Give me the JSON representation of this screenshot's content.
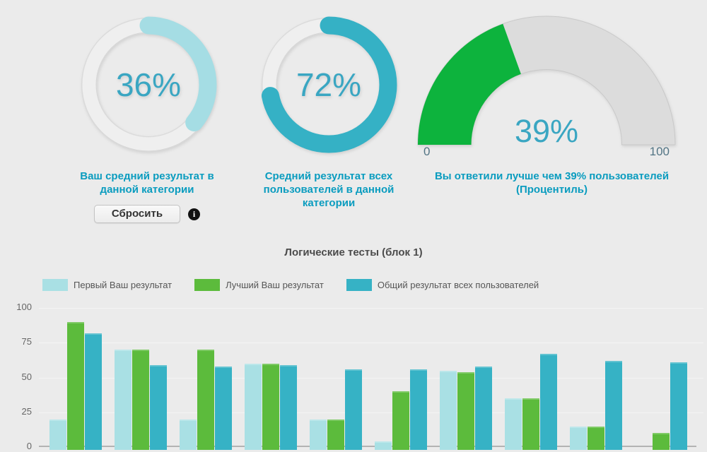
{
  "colors": {
    "background": "#ebebeb",
    "caption_teal": "#0a9cbf",
    "number_teal": "#3aa6c2",
    "series_first": "#a9e0e4",
    "series_best": "#5cbb3c",
    "series_all": "#36b2c5",
    "gauge_green": "#0db33d",
    "gauge_track": "#dcdcdc"
  },
  "controls": {
    "reset_button_label": "Сбросить",
    "info_icon": "info-icon",
    "info_icon_glyph": "i"
  },
  "chart_data": [
    {
      "id": "first_result_donut",
      "type": "donut",
      "value": 36,
      "max": 100,
      "label": "36%",
      "caption": "Ваш средний результат в данной категории",
      "color": "#a5dde4"
    },
    {
      "id": "all_users_donut",
      "type": "donut",
      "value": 72,
      "max": 100,
      "label": "72%",
      "caption": "Средний результат всех пользователей в данной категории",
      "color": "#35b1c5"
    },
    {
      "id": "percentile_gauge",
      "type": "gauge",
      "value": 39,
      "min": 0,
      "max": 100,
      "label": "39%",
      "axis_min_label": "0",
      "axis_max_label": "100",
      "caption": "Вы ответили лучше чем 39% пользователей (Процентиль)",
      "color": "#0db33d",
      "track_color": "#dcdcdc"
    },
    {
      "id": "logic_tests_bar",
      "type": "bar",
      "title": "Логические тесты (блок 1)",
      "categories": [
        "",
        "",
        "",
        "",
        "",
        "",
        "",
        "",
        "",
        ""
      ],
      "series": [
        {
          "name": "Первый Ваш результат",
          "color": "#a9e0e4",
          "values": [
            20,
            70,
            20,
            60,
            20,
            4,
            55,
            35,
            15,
            0
          ]
        },
        {
          "name": "Лучший Ваш результат",
          "color": "#5cbb3c",
          "values": [
            90,
            70,
            70,
            60,
            20,
            40,
            54,
            35,
            15,
            10
          ]
        },
        {
          "name": "Общий результат всех пользователей",
          "color": "#36b2c5",
          "values": [
            82,
            59,
            58,
            59,
            56,
            56,
            58,
            67,
            62,
            61
          ]
        }
      ],
      "ylim": [
        0,
        100
      ],
      "yticks": [
        0,
        25,
        50,
        75,
        100
      ],
      "grid": true,
      "legend_position": "top",
      "x_axis_labels_visible": false
    }
  ]
}
